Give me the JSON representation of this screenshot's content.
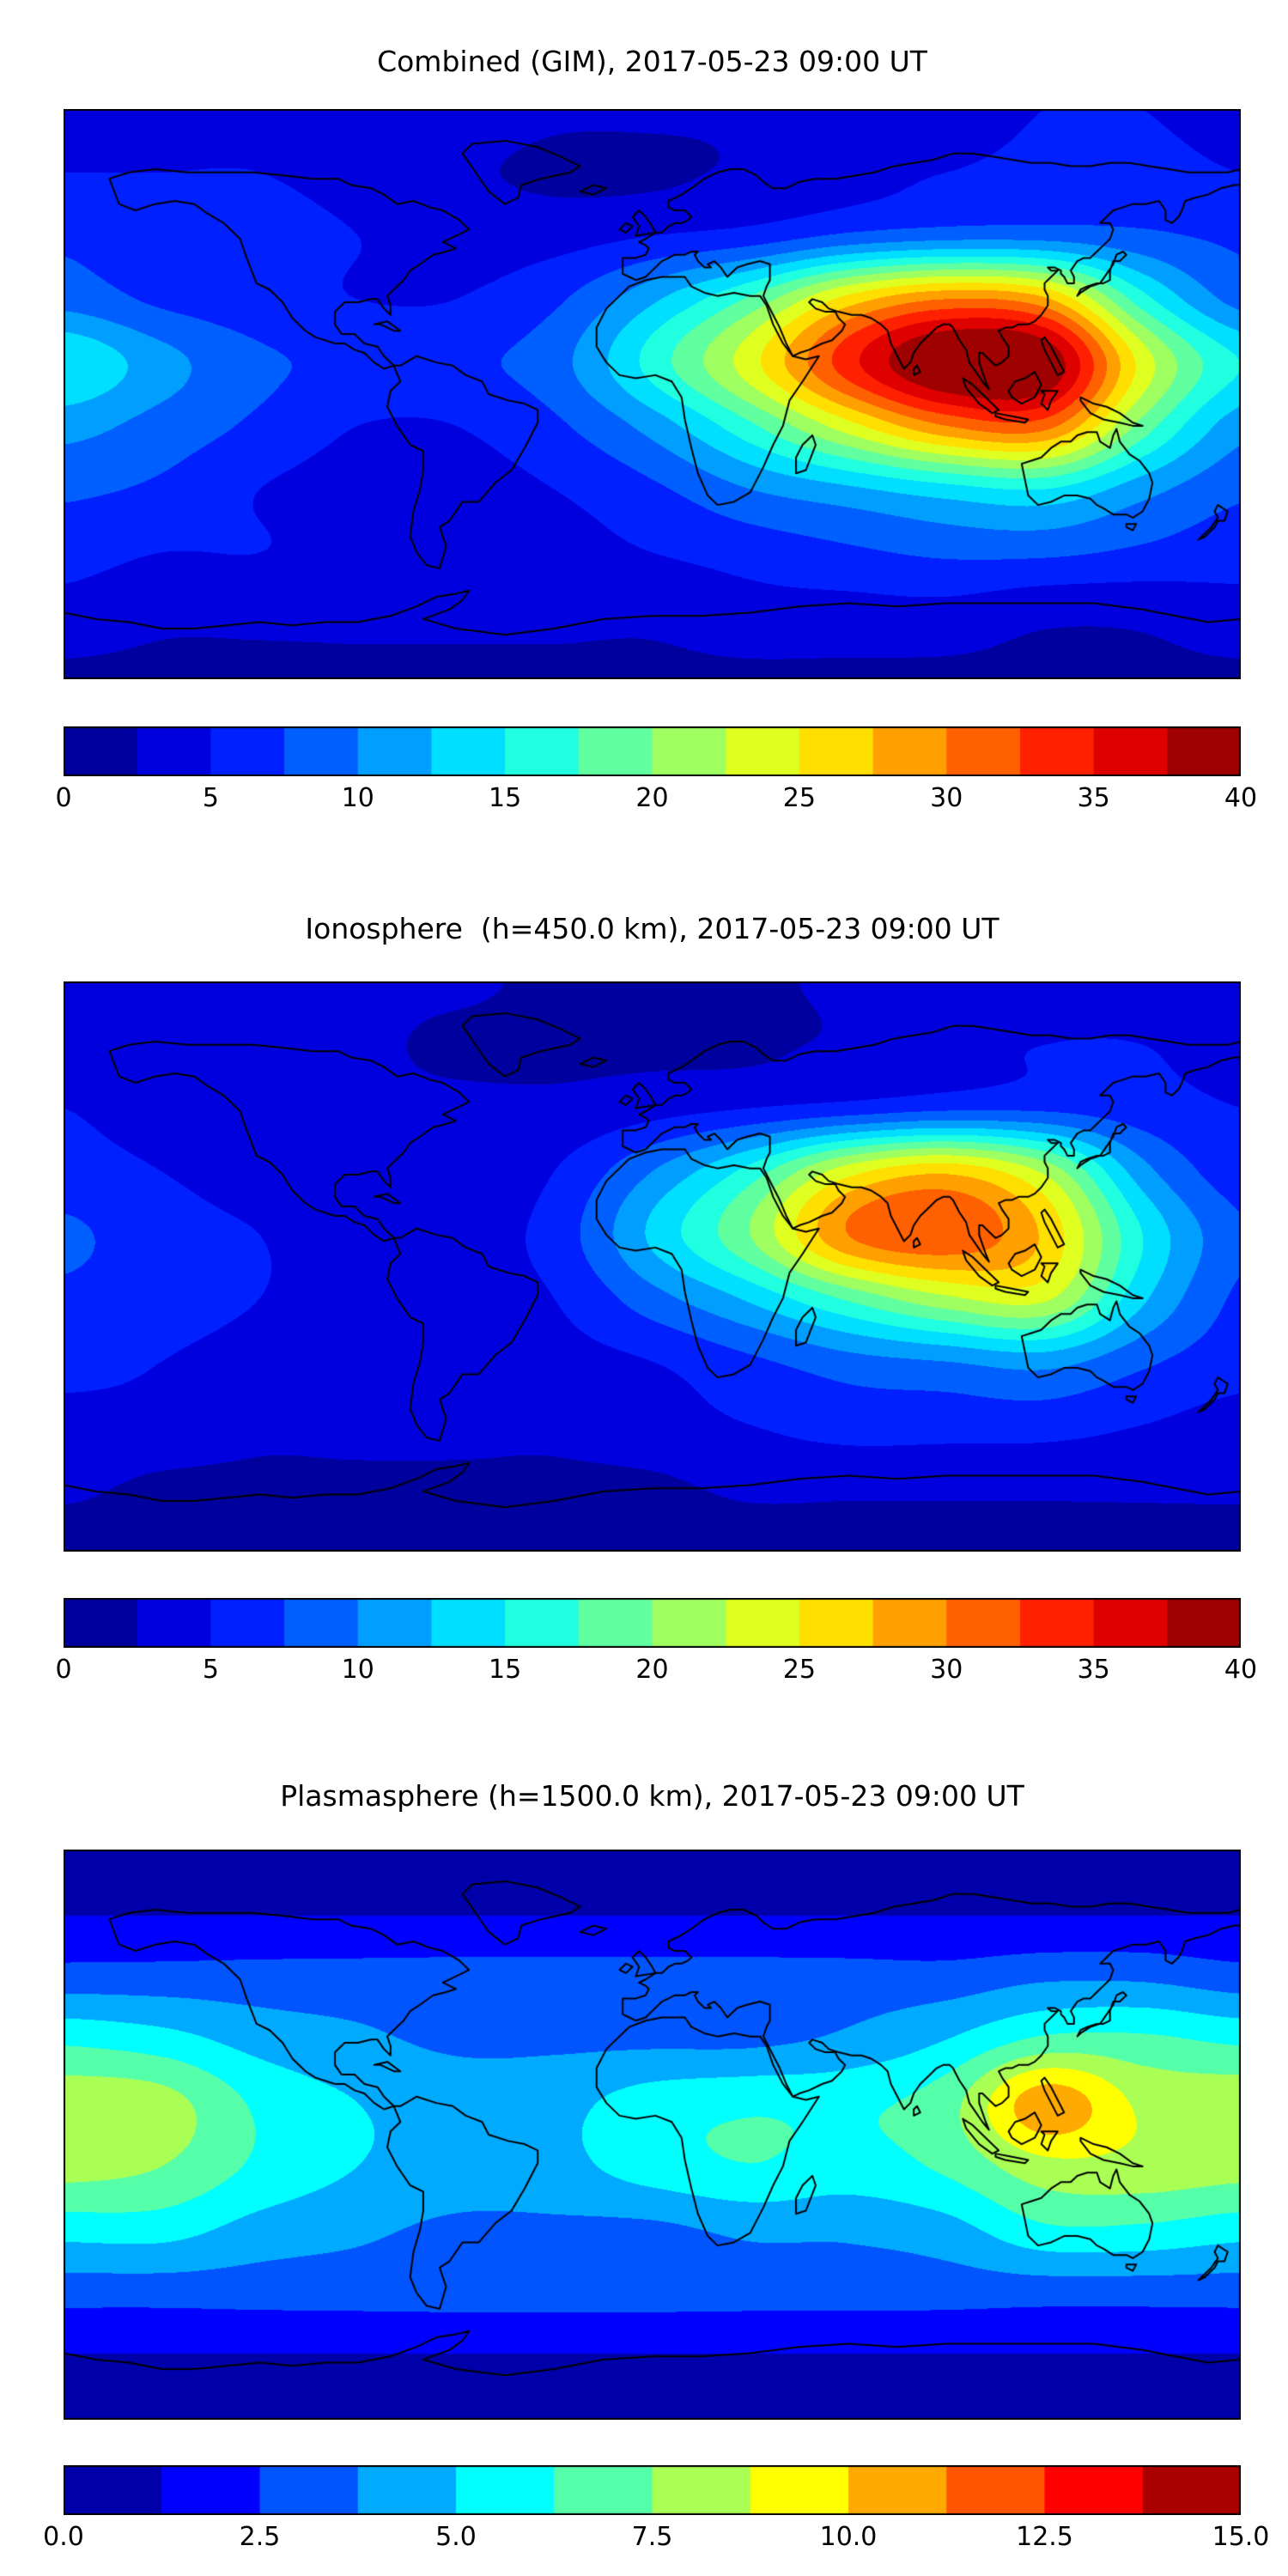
{
  "figure": {
    "background": "#ffffff",
    "line_color": "#000000",
    "colormap_name": "jet"
  },
  "chart_data": [
    {
      "type": "heatmap",
      "title": "Combined (GIM), 2017-05-23 09:00 UT",
      "colormap": "jet",
      "projection": "equirectangular",
      "lon": [
        -180,
        -150,
        -120,
        -90,
        -60,
        -30,
        0,
        30,
        60,
        90,
        120,
        150,
        180
      ],
      "lat": [
        90,
        70,
        50,
        30,
        10,
        -10,
        -30,
        -50,
        -70,
        -90
      ],
      "values": [
        [
          4,
          4,
          4,
          4,
          4,
          3,
          3,
          3,
          4,
          4,
          5,
          5,
          4
        ],
        [
          5,
          5,
          5,
          4,
          3,
          2,
          2,
          3,
          4,
          5,
          6,
          6,
          5
        ],
        [
          7,
          6,
          6,
          5,
          4,
          4,
          5,
          6,
          8,
          9,
          9,
          8,
          7
        ],
        [
          9,
          7,
          6,
          5,
          5,
          7,
          12,
          18,
          26,
          30,
          28,
          16,
          9
        ],
        [
          15,
          11,
          8,
          7,
          7,
          9,
          16,
          24,
          34,
          41,
          40,
          24,
          15
        ],
        [
          11,
          9,
          7,
          5,
          5,
          7,
          11,
          17,
          24,
          30,
          31,
          19,
          11
        ],
        [
          8,
          7,
          5,
          4,
          4,
          5,
          7,
          10,
          12,
          14,
          15,
          11,
          8
        ],
        [
          6,
          5,
          5,
          4,
          4,
          4,
          5,
          6,
          7,
          8,
          8,
          7,
          6
        ],
        [
          4,
          3,
          3,
          3,
          3,
          3,
          3,
          4,
          4,
          4,
          3,
          3,
          4
        ],
        [
          2,
          2,
          2,
          2,
          2,
          2,
          2,
          2,
          2,
          2,
          2,
          2,
          2
        ]
      ],
      "levels_min": 0,
      "levels_max": 40,
      "level_step": 2.5,
      "colorbar_orientation": "horizontal",
      "colorbar_ticks": [
        0,
        5,
        10,
        15,
        20,
        25,
        30,
        35,
        40
      ],
      "colorbar_tick_labels": [
        "0",
        "5",
        "10",
        "15",
        "20",
        "25",
        "30",
        "35",
        "40"
      ]
    },
    {
      "type": "heatmap",
      "title": "Ionosphere  (h=450.0 km), 2017-05-23 09:00 UT",
      "colormap": "jet",
      "projection": "equirectangular",
      "lon": [
        -180,
        -150,
        -120,
        -90,
        -60,
        -30,
        0,
        30,
        60,
        90,
        120,
        150,
        180
      ],
      "lat": [
        90,
        70,
        50,
        30,
        10,
        -10,
        -30,
        -50,
        -70,
        -90
      ],
      "values": [
        [
          3,
          3,
          3,
          3,
          3,
          2,
          2,
          2,
          3,
          3,
          4,
          4,
          3
        ],
        [
          4,
          4,
          3,
          3,
          2,
          2,
          2,
          2,
          3,
          4,
          5,
          5,
          4
        ],
        [
          5,
          4,
          4,
          3,
          3,
          3,
          4,
          5,
          6,
          7,
          7,
          6,
          5
        ],
        [
          6,
          5,
          4,
          3,
          3,
          5,
          10,
          16,
          24,
          27,
          22,
          11,
          6
        ],
        [
          8,
          6,
          5,
          4,
          4,
          6,
          13,
          20,
          30,
          32,
          27,
          15,
          8
        ],
        [
          7,
          6,
          5,
          4,
          4,
          5,
          9,
          13,
          18,
          22,
          23,
          13,
          7
        ],
        [
          6,
          5,
          4,
          3,
          3,
          4,
          5,
          7,
          9,
          10,
          11,
          8,
          6
        ],
        [
          4,
          4,
          3,
          3,
          3,
          3,
          4,
          5,
          6,
          6,
          6,
          5,
          4
        ],
        [
          3,
          2,
          2,
          2,
          2,
          2,
          2,
          3,
          3,
          3,
          3,
          3,
          3
        ],
        [
          1,
          1,
          1,
          1,
          1,
          1,
          1,
          1,
          1,
          1,
          1,
          1,
          1
        ]
      ],
      "levels_min": 0,
      "levels_max": 40,
      "level_step": 2.5,
      "colorbar_orientation": "horizontal",
      "colorbar_ticks": [
        0,
        5,
        10,
        15,
        20,
        25,
        30,
        35,
        40
      ],
      "colorbar_tick_labels": [
        "0",
        "5",
        "10",
        "15",
        "20",
        "25",
        "30",
        "35",
        "40"
      ]
    },
    {
      "type": "heatmap",
      "title": "Plasmasphere (h=1500.0 km), 2017-05-23 09:00 UT",
      "colormap": "jet",
      "projection": "equirectangular",
      "lon": [
        -180,
        -150,
        -120,
        -90,
        -60,
        -30,
        0,
        30,
        60,
        90,
        120,
        150,
        180
      ],
      "lat": [
        90,
        70,
        50,
        30,
        10,
        -10,
        -30,
        -50,
        -70,
        -90
      ],
      "values": [
        [
          1,
          1,
          1,
          1,
          1,
          1,
          1,
          1,
          1,
          1,
          1,
          1,
          1
        ],
        [
          1.2,
          1.2,
          1.2,
          1.2,
          1.2,
          1.2,
          1.2,
          1.2,
          1.2,
          1.2,
          1.2,
          1.2,
          1.2
        ],
        [
          3,
          3,
          3,
          3,
          3,
          3,
          3,
          3,
          3,
          3,
          3.5,
          3.5,
          3
        ],
        [
          6,
          5.5,
          4.5,
          4,
          3.5,
          3.5,
          3.5,
          3.5,
          4,
          5,
          6.5,
          6.5,
          6
        ],
        [
          8.3,
          8,
          6,
          5,
          4.5,
          4.6,
          5.6,
          6,
          6,
          7,
          10.8,
          8.5,
          8.3
        ],
        [
          8,
          7.5,
          6,
          5,
          4.5,
          4.6,
          5.6,
          6.2,
          5.7,
          6.5,
          8.3,
          8.3,
          8
        ],
        [
          5.5,
          5.5,
          4.5,
          4,
          3.5,
          3.5,
          3.5,
          4,
          4,
          4.5,
          6,
          6,
          5.5
        ],
        [
          3,
          3,
          3,
          3,
          3,
          3,
          3,
          3,
          3,
          3,
          3,
          3,
          3
        ],
        [
          1.2,
          1.2,
          1.2,
          1.2,
          1.2,
          1.2,
          1.2,
          1.2,
          1.2,
          1.2,
          1.2,
          1.2,
          1.2
        ],
        [
          1,
          1,
          1,
          1,
          1,
          1,
          1,
          1,
          1,
          1,
          1,
          1,
          1
        ]
      ],
      "levels_min": 0,
      "levels_max": 15,
      "level_step": 1.25,
      "colorbar_orientation": "horizontal",
      "colorbar_ticks": [
        0,
        2.5,
        5,
        7.5,
        10,
        12.5,
        15
      ],
      "colorbar_tick_labels": [
        "0.0",
        "2.5",
        "5.0",
        "7.5",
        "10.0",
        "12.5",
        "15.0"
      ]
    }
  ]
}
